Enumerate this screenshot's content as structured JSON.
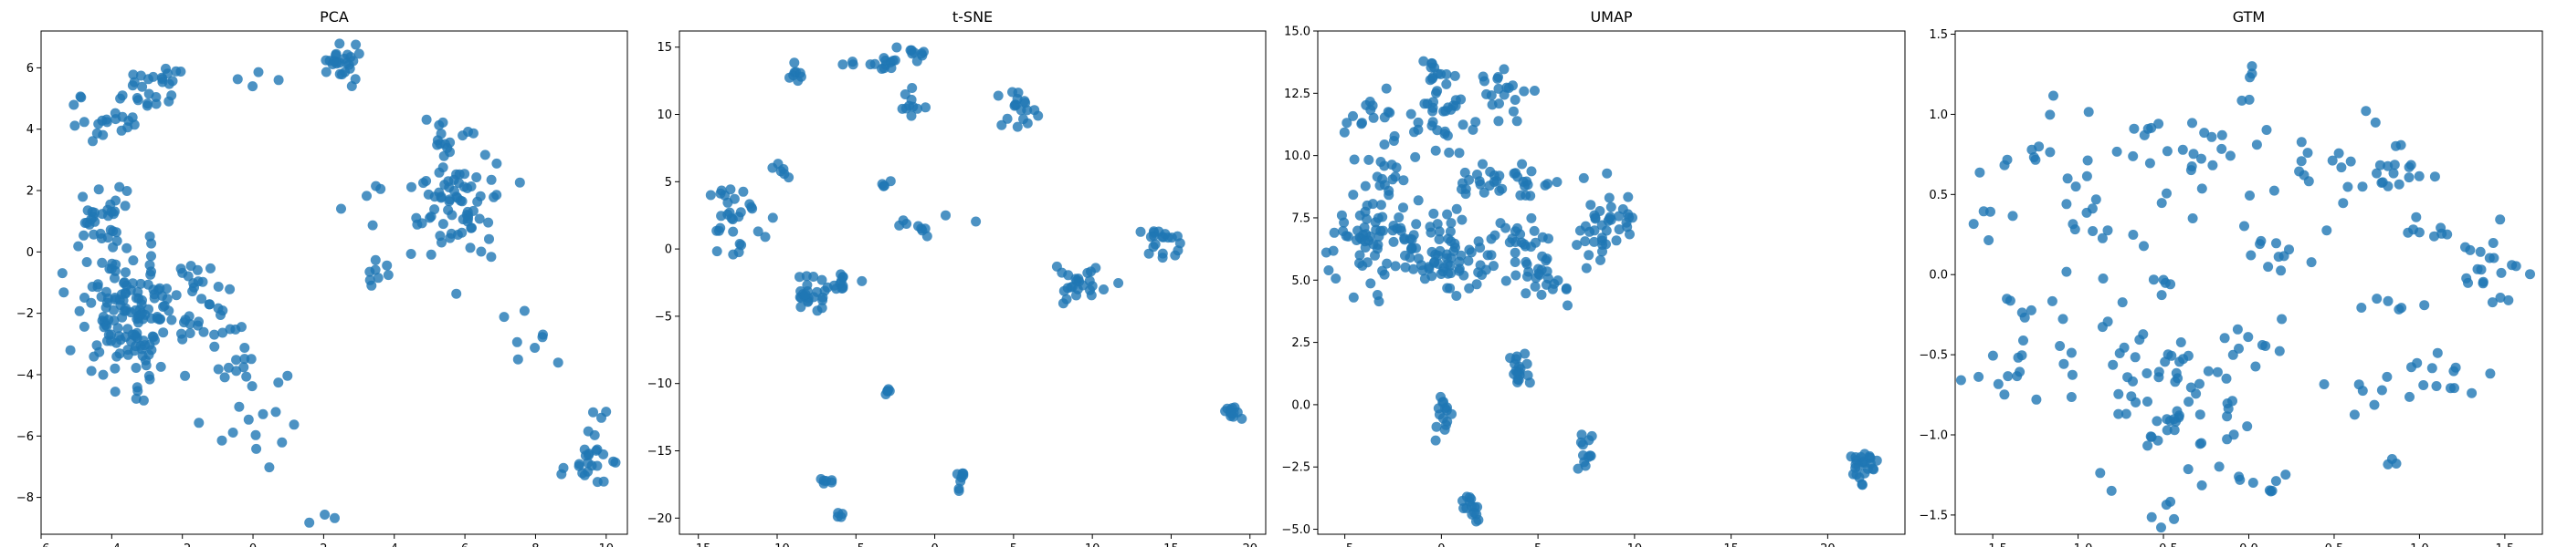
{
  "figure": {
    "point_color": "#1f77b4",
    "point_opacity": 0.8,
    "background": "#ffffff"
  },
  "chart_data": [
    {
      "type": "scatter",
      "title": "PCA",
      "xlabel": "",
      "ylabel": "",
      "xlim": [
        -6.0,
        10.6
      ],
      "ylim": [
        -9.2,
        7.2
      ],
      "xticks": [
        -6,
        -4,
        -2,
        0,
        2,
        4,
        6,
        8,
        10
      ],
      "yticks": [
        -8,
        -6,
        -4,
        -2,
        0,
        2,
        4,
        6
      ],
      "grid": false,
      "clusters": [
        {
          "x": -3.5,
          "y": -2.0,
          "n": 150,
          "sx": 0.75,
          "sy": 1.1
        },
        {
          "x": -4.3,
          "y": 1.2,
          "n": 30,
          "sx": 0.5,
          "sy": 0.6
        },
        {
          "x": -4.0,
          "y": 4.3,
          "n": 22,
          "sx": 0.45,
          "sy": 0.5
        },
        {
          "x": -2.8,
          "y": 5.5,
          "n": 25,
          "sx": 0.5,
          "sy": 0.4
        },
        {
          "x": -1.5,
          "y": -1.5,
          "n": 30,
          "sx": 0.5,
          "sy": 0.7
        },
        {
          "x": -0.5,
          "y": -3.8,
          "n": 18,
          "sx": 0.8,
          "sy": 0.7
        },
        {
          "x": -0.3,
          "y": -5.8,
          "n": 12,
          "sx": 0.8,
          "sy": 0.5
        },
        {
          "x": 2.5,
          "y": 6.2,
          "n": 25,
          "sx": 0.25,
          "sy": 0.3
        },
        {
          "x": 5.8,
          "y": 1.6,
          "n": 70,
          "sx": 0.55,
          "sy": 1.0
        },
        {
          "x": 3.5,
          "y": -0.6,
          "n": 8,
          "sx": 0.2,
          "sy": 0.3
        },
        {
          "x": 5.6,
          "y": 3.3,
          "n": 14,
          "sx": 0.4,
          "sy": 0.5
        },
        {
          "x": 8.0,
          "y": -3.0,
          "n": 8,
          "sx": 0.4,
          "sy": 0.6
        },
        {
          "x": 9.5,
          "y": -7.0,
          "n": 20,
          "sx": 0.4,
          "sy": 0.4
        },
        {
          "x": 9.7,
          "y": -5.8,
          "n": 6,
          "sx": 0.2,
          "sy": 0.3
        },
        {
          "x": 2.0,
          "y": -8.5,
          "n": 3,
          "sx": 0.3,
          "sy": 0.2
        },
        {
          "x": 0.3,
          "y": 5.8,
          "n": 4,
          "sx": 0.3,
          "sy": 0.2
        },
        {
          "x": 3.3,
          "y": 1.8,
          "n": 6,
          "sx": 0.5,
          "sy": 0.4
        }
      ]
    },
    {
      "type": "scatter",
      "title": "t-SNE",
      "xlabel": "",
      "ylabel": "",
      "xlim": [
        -16.2,
        21.0
      ],
      "ylim": [
        -21.2,
        16.2
      ],
      "xticks": [
        -15,
        -10,
        -5,
        0,
        5,
        10,
        15,
        20
      ],
      "yticks": [
        -20,
        -15,
        -10,
        -5,
        0,
        5,
        10,
        15
      ],
      "grid": false,
      "clusters": [
        {
          "x": -12.5,
          "y": 2.2,
          "n": 30,
          "sx": 1.2,
          "sy": 1.2
        },
        {
          "x": -9.5,
          "y": 6.0,
          "n": 6,
          "sx": 0.3,
          "sy": 0.6
        },
        {
          "x": -8.8,
          "y": 13.0,
          "n": 8,
          "sx": 0.3,
          "sy": 0.4
        },
        {
          "x": -7.8,
          "y": -3.2,
          "n": 25,
          "sx": 1.0,
          "sy": 0.6
        },
        {
          "x": -6.0,
          "y": -2.5,
          "n": 10,
          "sx": 0.3,
          "sy": 0.4
        },
        {
          "x": -3.0,
          "y": 14.0,
          "n": 15,
          "sx": 1.2,
          "sy": 0.3
        },
        {
          "x": -1.0,
          "y": 14.7,
          "n": 8,
          "sx": 0.5,
          "sy": 0.2
        },
        {
          "x": -1.5,
          "y": 10.8,
          "n": 10,
          "sx": 0.4,
          "sy": 0.5
        },
        {
          "x": -3.0,
          "y": 4.8,
          "n": 4,
          "sx": 0.2,
          "sy": 0.2
        },
        {
          "x": -3.0,
          "y": -10.5,
          "n": 5,
          "sx": 0.2,
          "sy": 0.2
        },
        {
          "x": -7.0,
          "y": -17.2,
          "n": 6,
          "sx": 0.3,
          "sy": 0.15
        },
        {
          "x": -6.0,
          "y": -19.8,
          "n": 4,
          "sx": 0.15,
          "sy": 0.15
        },
        {
          "x": 1.8,
          "y": -17.2,
          "n": 8,
          "sx": 0.3,
          "sy": 0.3
        },
        {
          "x": 5.5,
          "y": 10.2,
          "n": 18,
          "sx": 0.7,
          "sy": 0.7
        },
        {
          "x": 9.0,
          "y": -2.5,
          "n": 25,
          "sx": 0.8,
          "sy": 0.9
        },
        {
          "x": 14.5,
          "y": 0.5,
          "n": 20,
          "sx": 0.8,
          "sy": 0.8
        },
        {
          "x": 19.0,
          "y": -12.2,
          "n": 12,
          "sx": 0.3,
          "sy": 0.4
        },
        {
          "x": -0.5,
          "y": 1.3,
          "n": 4,
          "sx": 0.4,
          "sy": 0.3
        },
        {
          "x": 1.0,
          "y": 2.0,
          "n": 3,
          "sx": 1.0,
          "sy": 0.3
        },
        {
          "x": -2.0,
          "y": 2.0,
          "n": 3,
          "sx": 0.3,
          "sy": 0.3
        }
      ]
    },
    {
      "type": "scatter",
      "title": "UMAP",
      "xlabel": "",
      "ylabel": "",
      "xlim": [
        -6.4,
        24.0
      ],
      "ylim": [
        -5.2,
        15.0
      ],
      "xticks": [
        -5,
        0,
        5,
        10,
        15,
        20
      ],
      "yticks": [
        -5.0,
        -2.5,
        0.0,
        2.5,
        5.0,
        7.5,
        10.0,
        12.5,
        15.0
      ],
      "grid": false,
      "clusters": [
        {
          "x": -3.5,
          "y": 6.5,
          "n": 70,
          "sx": 1.1,
          "sy": 1.1
        },
        {
          "x": 0.0,
          "y": 6.0,
          "n": 60,
          "sx": 1.0,
          "sy": 0.8
        },
        {
          "x": -3.5,
          "y": 11.5,
          "n": 18,
          "sx": 0.6,
          "sy": 0.6
        },
        {
          "x": -2.8,
          "y": 9.3,
          "n": 12,
          "sx": 0.5,
          "sy": 0.4
        },
        {
          "x": 0.0,
          "y": 11.5,
          "n": 35,
          "sx": 0.7,
          "sy": 0.9
        },
        {
          "x": 0.0,
          "y": 13.5,
          "n": 10,
          "sx": 0.5,
          "sy": 0.4
        },
        {
          "x": 3.5,
          "y": 12.5,
          "n": 20,
          "sx": 0.7,
          "sy": 0.6
        },
        {
          "x": 3.0,
          "y": 9.0,
          "n": 35,
          "sx": 1.5,
          "sy": 0.4
        },
        {
          "x": 4.0,
          "y": 6.3,
          "n": 40,
          "sx": 1.0,
          "sy": 0.9
        },
        {
          "x": 5.5,
          "y": 4.8,
          "n": 10,
          "sx": 0.5,
          "sy": 0.3
        },
        {
          "x": 2.0,
          "y": 5.3,
          "n": 6,
          "sx": 0.4,
          "sy": 0.3
        },
        {
          "x": 8.5,
          "y": 7.0,
          "n": 40,
          "sx": 0.8,
          "sy": 0.7
        },
        {
          "x": 0.0,
          "y": -0.5,
          "n": 15,
          "sx": 0.3,
          "sy": 0.4
        },
        {
          "x": 1.5,
          "y": -4.0,
          "n": 15,
          "sx": 0.3,
          "sy": 0.3
        },
        {
          "x": 4.0,
          "y": 1.3,
          "n": 18,
          "sx": 0.4,
          "sy": 0.4
        },
        {
          "x": 7.6,
          "y": -1.8,
          "n": 12,
          "sx": 0.3,
          "sy": 0.4
        },
        {
          "x": 21.8,
          "y": -2.4,
          "n": 25,
          "sx": 0.4,
          "sy": 0.4
        }
      ]
    },
    {
      "type": "scatter",
      "title": "GTM",
      "xlabel": "",
      "ylabel": "",
      "xlim": [
        -1.72,
        1.72
      ],
      "ylim": [
        -1.62,
        1.52
      ],
      "xticks": [
        -1.5,
        -1.0,
        -0.5,
        0.0,
        0.5,
        1.0,
        1.5
      ],
      "yticks": [
        -1.5,
        -1.0,
        -0.5,
        0.0,
        0.5,
        1.0,
        1.5
      ],
      "grid": false,
      "clusters": [
        {
          "x": -0.8,
          "y": 1.0,
          "n": 12,
          "sx": 0.2,
          "sy": 0.15
        },
        {
          "x": -0.3,
          "y": 0.8,
          "n": 15,
          "sx": 0.15,
          "sy": 0.15
        },
        {
          "x": 0.1,
          "y": 1.0,
          "n": 10,
          "sx": 0.15,
          "sy": 0.2
        },
        {
          "x": -1.3,
          "y": 0.75,
          "n": 6,
          "sx": 0.1,
          "sy": 0.05
        },
        {
          "x": 0.75,
          "y": 0.7,
          "n": 25,
          "sx": 0.15,
          "sy": 0.12
        },
        {
          "x": 1.1,
          "y": 0.3,
          "n": 8,
          "sx": 0.1,
          "sy": 0.05
        },
        {
          "x": 1.4,
          "y": 0.0,
          "n": 20,
          "sx": 0.1,
          "sy": 0.15
        },
        {
          "x": 1.2,
          "y": -0.6,
          "n": 10,
          "sx": 0.15,
          "sy": 0.1
        },
        {
          "x": -1.5,
          "y": 0.3,
          "n": 6,
          "sx": 0.1,
          "sy": 0.15
        },
        {
          "x": -1.3,
          "y": -0.2,
          "n": 6,
          "sx": 0.1,
          "sy": 0.05
        },
        {
          "x": -1.45,
          "y": -0.6,
          "n": 10,
          "sx": 0.1,
          "sy": 0.1
        },
        {
          "x": -0.8,
          "y": -0.5,
          "n": 20,
          "sx": 0.3,
          "sy": 0.3
        },
        {
          "x": -0.4,
          "y": -0.9,
          "n": 40,
          "sx": 0.2,
          "sy": 0.2
        },
        {
          "x": -0.4,
          "y": -0.6,
          "n": 15,
          "sx": 0.15,
          "sy": 0.1
        },
        {
          "x": 0.1,
          "y": -0.4,
          "n": 10,
          "sx": 0.15,
          "sy": 0.1
        },
        {
          "x": 0.05,
          "y": -1.3,
          "n": 8,
          "sx": 0.1,
          "sy": 0.03
        },
        {
          "x": -0.5,
          "y": -1.45,
          "n": 5,
          "sx": 0.05,
          "sy": 0.05
        },
        {
          "x": 0.8,
          "y": -0.7,
          "n": 10,
          "sx": 0.15,
          "sy": 0.1
        },
        {
          "x": 0.85,
          "y": -1.18,
          "n": 3,
          "sx": 0.05,
          "sy": 0.02
        },
        {
          "x": 0.8,
          "y": -0.2,
          "n": 6,
          "sx": 0.1,
          "sy": 0.05
        },
        {
          "x": -0.2,
          "y": 0.3,
          "n": 10,
          "sx": 0.3,
          "sy": 0.15
        },
        {
          "x": 0.2,
          "y": 0.2,
          "n": 8,
          "sx": 0.1,
          "sy": 0.1
        },
        {
          "x": -0.55,
          "y": -0.1,
          "n": 4,
          "sx": 0.05,
          "sy": 0.05
        },
        {
          "x": -1.0,
          "y": 0.2,
          "n": 8,
          "sx": 0.1,
          "sy": 0.1
        },
        {
          "x": 0.3,
          "y": 0.7,
          "n": 5,
          "sx": 0.05,
          "sy": 0.08
        },
        {
          "x": -1.0,
          "y": 0.5,
          "n": 5,
          "sx": 0.1,
          "sy": 0.1
        }
      ]
    }
  ]
}
